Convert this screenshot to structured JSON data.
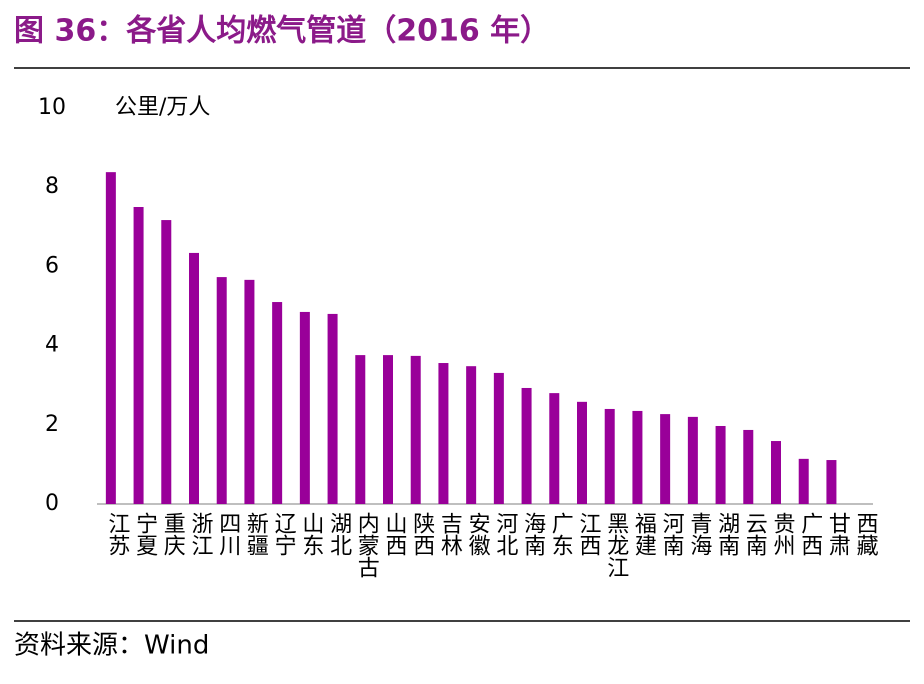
{
  "chart_data": {
    "type": "bar",
    "title": "图 36：各省人均燃气管道（2016 年）",
    "y_label": "公里/万人",
    "source": "资料来源：Wind",
    "categories": [
      "江苏",
      "宁夏",
      "重庆",
      "浙江",
      "四川",
      "新疆",
      "辽宁",
      "山东",
      "湖北",
      "内蒙古",
      "山西",
      "陕西",
      "吉林",
      "安徽",
      "河北",
      "海南",
      "广东",
      "江西",
      "黑龙江",
      "福建",
      "河南",
      "青海",
      "湖南",
      "云南",
      "贵州",
      "广西",
      "甘肃",
      "西藏"
    ],
    "values": [
      8.38,
      7.5,
      7.17,
      6.34,
      5.73,
      5.66,
      5.1,
      4.85,
      4.8,
      3.76,
      3.76,
      3.74,
      3.56,
      3.48,
      3.31,
      2.93,
      2.8,
      2.58,
      2.4,
      2.35,
      2.27,
      2.2,
      1.97,
      1.87,
      1.59,
      1.14,
      1.11,
      0
    ],
    "color": "#990099",
    "ylim": [
      0,
      10
    ],
    "yticks": [
      0,
      2,
      4,
      6,
      8,
      10
    ],
    "grid": false
  }
}
